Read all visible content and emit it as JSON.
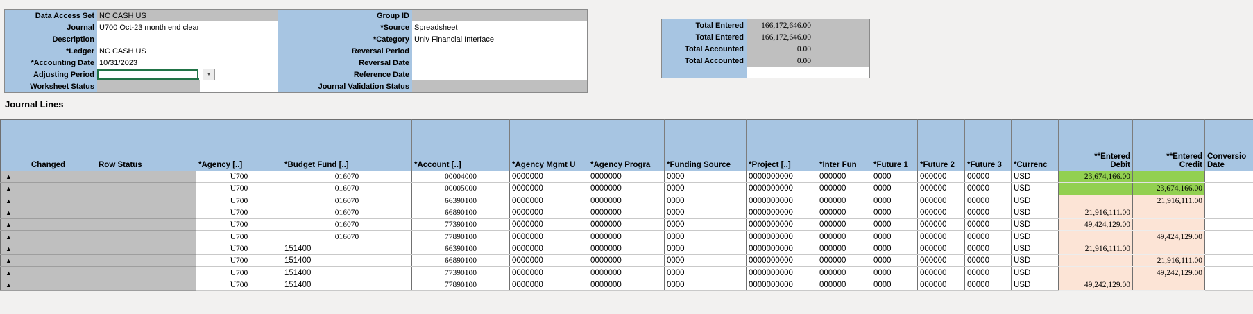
{
  "colors": {
    "header_blue": "#a7c5e2",
    "readonly_grey": "#bfbfbf",
    "highlight_green": "#92d050",
    "amount_peach": "#fce4d6",
    "active_cell_border": "#217346"
  },
  "form": {
    "left_rows": [
      {
        "label": "Data Access Set",
        "value": "NC CASH US",
        "type": "readonly"
      },
      {
        "label": "Journal",
        "value": "U700 Oct-23 month end clear",
        "type": "input"
      },
      {
        "label": "Description",
        "value": "",
        "type": "input"
      },
      {
        "label": "*Ledger",
        "value": "NC CASH US",
        "type": "input"
      },
      {
        "label": "*Accounting Date",
        "value": "10/31/2023",
        "type": "input"
      },
      {
        "label": "Adjusting Period",
        "value": "",
        "type": "active-dropdown"
      },
      {
        "label": "Worksheet Status",
        "value": "",
        "type": "readonly-short"
      }
    ],
    "right_rows": [
      {
        "label": "Group ID",
        "value": "",
        "type": "readonly"
      },
      {
        "label": "*Source",
        "value": "Spreadsheet",
        "type": "input"
      },
      {
        "label": "*Category",
        "value": "Univ Financial Interface",
        "type": "input"
      },
      {
        "label": "Reversal Period",
        "value": "",
        "type": "input"
      },
      {
        "label": "Reversal Date",
        "value": "",
        "type": "input"
      },
      {
        "label": "Reference Date",
        "value": "",
        "type": "input"
      },
      {
        "label": "Journal Validation Status",
        "value": "",
        "type": "readonly"
      }
    ],
    "dropdown_arrow": "▼"
  },
  "totals": {
    "rows": [
      {
        "label": "Total Entered",
        "value": "166,172,646.00"
      },
      {
        "label": "Total Entered",
        "value": "166,172,646.00"
      },
      {
        "label": "Total Accounted",
        "value": "0.00"
      },
      {
        "label": "Total Accounted",
        "value": "0.00"
      }
    ]
  },
  "section_title": "Journal Lines",
  "table": {
    "columns": [
      {
        "key": "changed",
        "label": "Changed",
        "align": "center",
        "type": "status"
      },
      {
        "key": "row_status",
        "label": "Row Status",
        "align": "left",
        "type": "status"
      },
      {
        "key": "agency",
        "label": "*Agency [..]",
        "align": "center",
        "font": "serif"
      },
      {
        "key": "budget_fund",
        "label": "*Budget Fund [..]",
        "align": "center",
        "font": "serif"
      },
      {
        "key": "account",
        "label": "*Account [..]",
        "align": "center",
        "font": "serif"
      },
      {
        "key": "agency_mgmt",
        "label": "*Agency Mgmt U",
        "align": "left",
        "font": "sans"
      },
      {
        "key": "agency_program",
        "label": "*Agency Progra",
        "align": "left",
        "font": "sans"
      },
      {
        "key": "funding_source",
        "label": "*Funding Source",
        "align": "left",
        "font": "sans"
      },
      {
        "key": "project",
        "label": "*Project [..]",
        "align": "left",
        "font": "sans"
      },
      {
        "key": "inter_fund",
        "label": "*Inter Fun",
        "align": "left",
        "font": "sans"
      },
      {
        "key": "future_1",
        "label": "*Future 1",
        "align": "left",
        "font": "sans"
      },
      {
        "key": "future_2",
        "label": "*Future 2",
        "align": "left",
        "font": "sans"
      },
      {
        "key": "future_3",
        "label": "*Future 3",
        "align": "left",
        "font": "sans"
      },
      {
        "key": "currency",
        "label": "*Currenc",
        "align": "left",
        "font": "sans"
      },
      {
        "key": "entered_debit",
        "label_lines": [
          "**Entered",
          "Debit"
        ],
        "align": "right",
        "type": "amount",
        "font": "serif"
      },
      {
        "key": "entered_credit",
        "label_lines": [
          "**Entered",
          "Credit"
        ],
        "align": "right",
        "type": "amount",
        "font": "serif"
      },
      {
        "key": "conversion_date",
        "label_lines": [
          "Conversio",
          "Date"
        ],
        "align": "left",
        "font": "sans"
      }
    ],
    "rows": [
      {
        "changed": "▲",
        "row_status": "",
        "agency": "U700",
        "budget_fund": "016070",
        "account": "00004000",
        "agency_mgmt": "0000000",
        "agency_program": "0000000",
        "funding_source": "0000",
        "project": "0000000000",
        "inter_fund": "000000",
        "future_1": "0000",
        "future_2": "000000",
        "future_3": "00000",
        "currency": "USD",
        "entered_debit": "23,674,166.00",
        "entered_credit": "",
        "conversion_date": "",
        "highlight": "green"
      },
      {
        "changed": "▲",
        "row_status": "",
        "agency": "U700",
        "budget_fund": "016070",
        "account": "00005000",
        "agency_mgmt": "0000000",
        "agency_program": "0000000",
        "funding_source": "0000",
        "project": "0000000000",
        "inter_fund": "000000",
        "future_1": "0000",
        "future_2": "000000",
        "future_3": "00000",
        "currency": "USD",
        "entered_debit": "",
        "entered_credit": "23,674,166.00",
        "conversion_date": "",
        "highlight": "green"
      },
      {
        "changed": "▲",
        "row_status": "",
        "agency": "U700",
        "budget_fund": "016070",
        "account": "66390100",
        "agency_mgmt": "0000000",
        "agency_program": "0000000",
        "funding_source": "0000",
        "project": "0000000000",
        "inter_fund": "000000",
        "future_1": "0000",
        "future_2": "000000",
        "future_3": "00000",
        "currency": "USD",
        "entered_debit": "",
        "entered_credit": "21,916,111.00",
        "conversion_date": "",
        "highlight": "peach"
      },
      {
        "changed": "▲",
        "row_status": "",
        "agency": "U700",
        "budget_fund": "016070",
        "account": "66890100",
        "agency_mgmt": "0000000",
        "agency_program": "0000000",
        "funding_source": "0000",
        "project": "0000000000",
        "inter_fund": "000000",
        "future_1": "0000",
        "future_2": "000000",
        "future_3": "00000",
        "currency": "USD",
        "entered_debit": "21,916,111.00",
        "entered_credit": "",
        "conversion_date": "",
        "highlight": "peach"
      },
      {
        "changed": "▲",
        "row_status": "",
        "agency": "U700",
        "budget_fund": "016070",
        "account": "77390100",
        "agency_mgmt": "0000000",
        "agency_program": "0000000",
        "funding_source": "0000",
        "project": "0000000000",
        "inter_fund": "000000",
        "future_1": "0000",
        "future_2": "000000",
        "future_3": "00000",
        "currency": "USD",
        "entered_debit": "49,424,129.00",
        "entered_credit": "",
        "conversion_date": "",
        "highlight": "peach"
      },
      {
        "changed": "▲",
        "row_status": "",
        "agency": "U700",
        "budget_fund": "016070",
        "account": "77890100",
        "agency_mgmt": "0000000",
        "agency_program": "0000000",
        "funding_source": "0000",
        "project": "0000000000",
        "inter_fund": "000000",
        "future_1": "0000",
        "future_2": "000000",
        "future_3": "00000",
        "currency": "USD",
        "entered_debit": "",
        "entered_credit": "49,424,129.00",
        "conversion_date": "",
        "highlight": "peach"
      },
      {
        "changed": "▲",
        "row_status": "",
        "agency": "U700",
        "budget_fund": "151400",
        "bf_left": true,
        "account": "66390100",
        "agency_mgmt": "0000000",
        "agency_program": "0000000",
        "funding_source": "0000",
        "project": "0000000000",
        "inter_fund": "000000",
        "future_1": "0000",
        "future_2": "000000",
        "future_3": "00000",
        "currency": "USD",
        "entered_debit": "21,916,111.00",
        "entered_credit": "",
        "conversion_date": "",
        "highlight": "peach"
      },
      {
        "changed": "▲",
        "row_status": "",
        "agency": "U700",
        "budget_fund": "151400",
        "bf_left": true,
        "account": "66890100",
        "agency_mgmt": "0000000",
        "agency_program": "0000000",
        "funding_source": "0000",
        "project": "0000000000",
        "inter_fund": "000000",
        "future_1": "0000",
        "future_2": "000000",
        "future_3": "00000",
        "currency": "USD",
        "entered_debit": "",
        "entered_credit": "21,916,111.00",
        "conversion_date": "",
        "highlight": "peach"
      },
      {
        "changed": "▲",
        "row_status": "",
        "agency": "U700",
        "budget_fund": "151400",
        "bf_left": true,
        "account": "77390100",
        "agency_mgmt": "0000000",
        "agency_program": "0000000",
        "funding_source": "0000",
        "project": "0000000000",
        "inter_fund": "000000",
        "future_1": "0000",
        "future_2": "000000",
        "future_3": "00000",
        "currency": "USD",
        "entered_debit": "",
        "entered_credit": "49,242,129.00",
        "conversion_date": "",
        "highlight": "peach"
      },
      {
        "changed": "▲",
        "row_status": "",
        "agency": "U700",
        "budget_fund": "151400",
        "bf_left": true,
        "account": "77890100",
        "agency_mgmt": "0000000",
        "agency_program": "0000000",
        "funding_source": "0000",
        "project": "0000000000",
        "inter_fund": "000000",
        "future_1": "0000",
        "future_2": "000000",
        "future_3": "00000",
        "currency": "USD",
        "entered_debit": "49,242,129.00",
        "entered_credit": "",
        "conversion_date": "",
        "highlight": "peach"
      }
    ]
  }
}
